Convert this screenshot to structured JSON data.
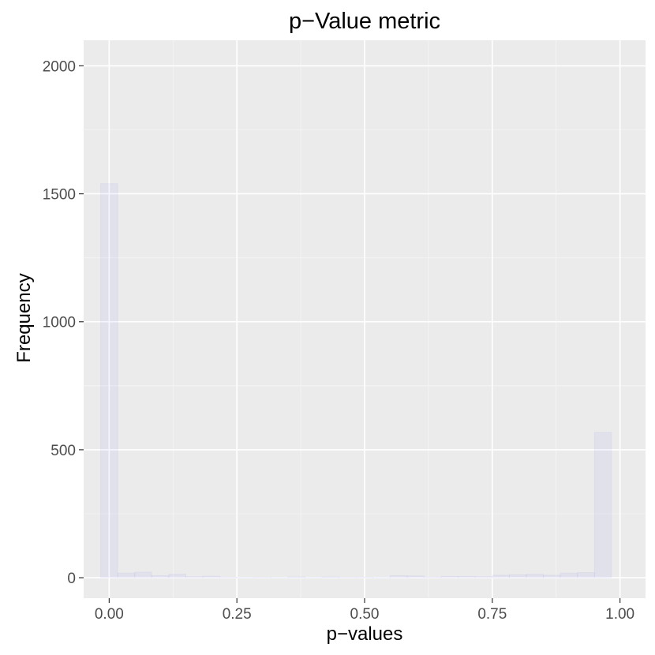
{
  "chart_data": {
    "type": "bar",
    "title": "p−Value metric",
    "xlabel": "p−values",
    "ylabel": "Frequency",
    "xlim": [
      -0.05,
      1.05
    ],
    "ylim": [
      -80,
      2100
    ],
    "xticks": [
      0.0,
      0.25,
      0.5,
      0.75,
      1.0
    ],
    "xtick_labels": [
      "0.00",
      "0.25",
      "0.50",
      "0.75",
      "1.00"
    ],
    "yticks": [
      0,
      500,
      1000,
      1500,
      2000
    ],
    "ytick_labels": [
      "0",
      "500",
      "1000",
      "1500",
      "2000"
    ],
    "grid": true,
    "background": "#ebebeb",
    "bar_color": "#0000ff",
    "bar_alpha": 0.2,
    "bin_width": 0.0333,
    "bins": [
      {
        "x0": -0.0167,
        "x1": 0.0167,
        "count": 1540
      },
      {
        "x0": 0.0167,
        "x1": 0.05,
        "count": 18
      },
      {
        "x0": 0.05,
        "x1": 0.0833,
        "count": 22
      },
      {
        "x0": 0.0833,
        "x1": 0.1167,
        "count": 8
      },
      {
        "x0": 0.1167,
        "x1": 0.15,
        "count": 14
      },
      {
        "x0": 0.15,
        "x1": 0.1833,
        "count": 4
      },
      {
        "x0": 0.1833,
        "x1": 0.2167,
        "count": 6
      },
      {
        "x0": 0.2167,
        "x1": 0.25,
        "count": 2
      },
      {
        "x0": 0.25,
        "x1": 0.2833,
        "count": 1
      },
      {
        "x0": 0.2833,
        "x1": 0.3167,
        "count": 2
      },
      {
        "x0": 0.3167,
        "x1": 0.35,
        "count": 1
      },
      {
        "x0": 0.35,
        "x1": 0.3833,
        "count": 3
      },
      {
        "x0": 0.3833,
        "x1": 0.4167,
        "count": 1
      },
      {
        "x0": 0.4167,
        "x1": 0.45,
        "count": 3
      },
      {
        "x0": 0.45,
        "x1": 0.4833,
        "count": 2
      },
      {
        "x0": 0.4833,
        "x1": 0.5167,
        "count": 2
      },
      {
        "x0": 0.5167,
        "x1": 0.55,
        "count": 1
      },
      {
        "x0": 0.55,
        "x1": 0.5833,
        "count": 8
      },
      {
        "x0": 0.5833,
        "x1": 0.6167,
        "count": 7
      },
      {
        "x0": 0.6167,
        "x1": 0.65,
        "count": 2
      },
      {
        "x0": 0.65,
        "x1": 0.6833,
        "count": 5
      },
      {
        "x0": 0.6833,
        "x1": 0.7167,
        "count": 5
      },
      {
        "x0": 0.7167,
        "x1": 0.75,
        "count": 4
      },
      {
        "x0": 0.75,
        "x1": 0.7833,
        "count": 10
      },
      {
        "x0": 0.7833,
        "x1": 0.8167,
        "count": 12
      },
      {
        "x0": 0.8167,
        "x1": 0.85,
        "count": 14
      },
      {
        "x0": 0.85,
        "x1": 0.8833,
        "count": 10
      },
      {
        "x0": 0.8833,
        "x1": 0.9167,
        "count": 18
      },
      {
        "x0": 0.9167,
        "x1": 0.95,
        "count": 20
      },
      {
        "x0": 0.95,
        "x1": 0.9833,
        "count": 568
      }
    ]
  }
}
